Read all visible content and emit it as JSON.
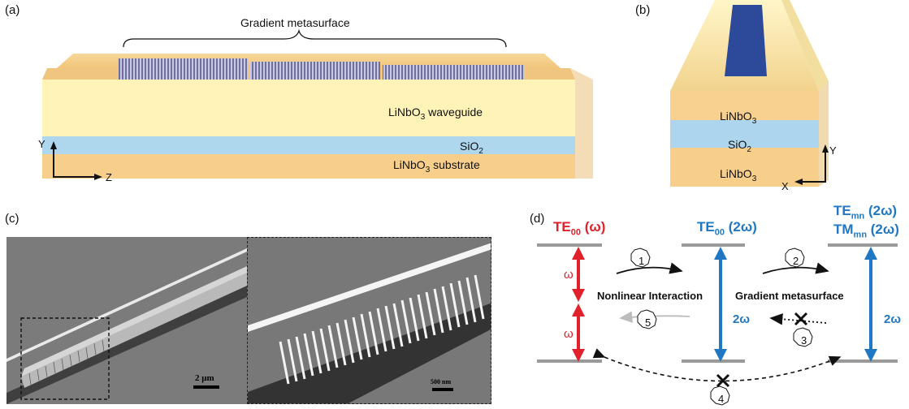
{
  "panels": {
    "a": {
      "label": "(a)",
      "title": "Gradient metasurface",
      "layer_waveguide": "LiNbO",
      "layer_waveguide_sub": "3",
      "layer_waveguide_suffix": " waveguide",
      "layer_oxide": "SiO",
      "layer_oxide_sub": "2",
      "layer_substrate": "LiNbO",
      "layer_substrate_sub": "3",
      "layer_substrate_suffix": " substrate",
      "axis_y": "Y",
      "axis_z": "Z"
    },
    "b": {
      "label": "(b)",
      "layer_top": "LiNbO",
      "layer_top_sub": "3",
      "layer_mid": "SiO",
      "layer_mid_sub": "2",
      "layer_bottom": "LiNbO",
      "layer_bottom_sub": "3",
      "axis_y": "Y",
      "axis_x": "X"
    },
    "c": {
      "label": "(c)",
      "scale_left": "2 μm",
      "scale_right": "500 nm"
    },
    "d": {
      "label": "(d)",
      "level_left": "TE",
      "level_left_sub": "00",
      "level_left_freq": " (ω)",
      "level_mid": "TE",
      "level_mid_sub": "00",
      "level_mid_freq": " (2ω)",
      "level_right_1": "TE",
      "level_right_1_sub": "mn",
      "level_right_1_freq": " (2ω)",
      "level_right_2": "TM",
      "level_right_2_sub": "mn",
      "level_right_2_freq": " (2ω)",
      "omega_upper": "ω",
      "omega_lower": "ω",
      "two_omega_mid": "2ω",
      "two_omega_right": "2ω",
      "nonlinear": "Nonlinear Interaction",
      "gradient": "Gradient metasurface",
      "step_1": "1",
      "step_2": "2",
      "step_3": "3",
      "step_4": "4",
      "step_5": "5"
    }
  },
  "colors": {
    "red": "#e0202a",
    "blue": "#1f78c1",
    "gray_line": "#9a9a9a",
    "linbo3": "#f7cf8a",
    "linbo3_light": "#fff4b8",
    "sio2": "#a9d6ee"
  }
}
